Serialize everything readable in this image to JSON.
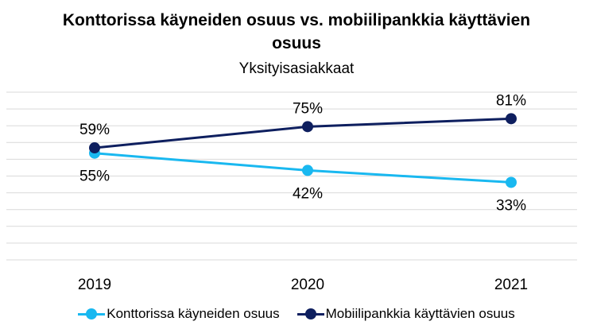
{
  "chart_data": {
    "type": "line",
    "title_line1": "Konttorissa käyneiden osuus vs. mobiilipankkia käyttävien",
    "title_line2": "osuus",
    "subtitle": "Yksityisasiakkaat",
    "categories": [
      "2019",
      "2020",
      "2021"
    ],
    "series": [
      {
        "name": "Konttorissa käyneiden osuus",
        "values": [
          55,
          42,
          33
        ],
        "labels": [
          "55%",
          "42%",
          "33%"
        ],
        "color": "#19B8F0",
        "label_position": "below"
      },
      {
        "name": "Mobiilipankkia käyttävien osuus",
        "values": [
          59,
          75,
          81
        ],
        "labels": [
          "59%",
          "75%",
          "81%"
        ],
        "color": "#0E1F5F",
        "label_position": "above"
      }
    ],
    "grid": true,
    "gridline_color": "#D9D9D9",
    "legend": "bottom"
  }
}
